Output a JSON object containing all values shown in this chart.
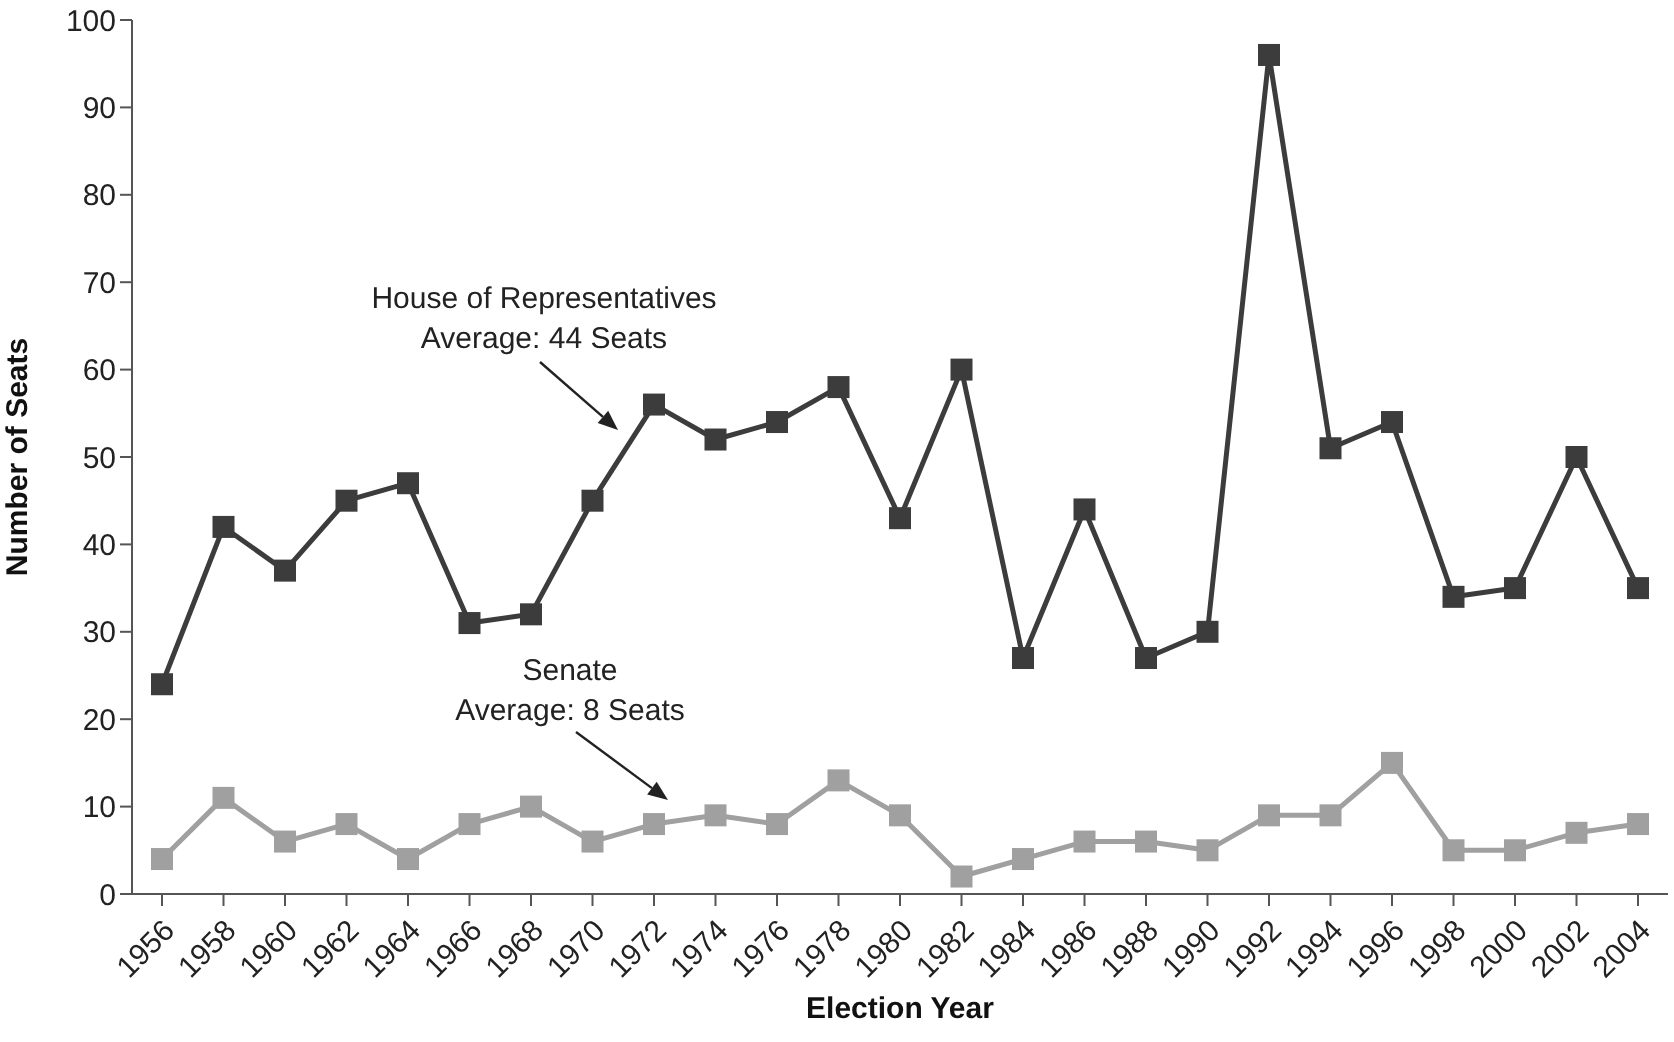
{
  "chart_data": {
    "type": "line",
    "xlabel": "Election Year",
    "ylabel": "Number of Seats",
    "categories": [
      "1956",
      "1958",
      "1960",
      "1962",
      "1964",
      "1966",
      "1968",
      "1970",
      "1972",
      "1974",
      "1976",
      "1978",
      "1980",
      "1982",
      "1984",
      "1986",
      "1988",
      "1990",
      "1992",
      "1994",
      "1996",
      "1998",
      "2000",
      "2002",
      "2004"
    ],
    "series": [
      {
        "color": "#3c3c3c",
        "values": [
          24,
          42,
          37,
          45,
          47,
          31,
          32,
          45,
          56,
          52,
          54,
          58,
          43,
          60,
          27,
          44,
          27,
          30,
          96,
          51,
          54,
          34,
          35,
          50,
          35
        ]
      },
      {
        "color": "#a0a0a0",
        "values": [
          4,
          11,
          6,
          8,
          4,
          8,
          10,
          6,
          8,
          9,
          8,
          13,
          9,
          2,
          4,
          6,
          6,
          5,
          9,
          9,
          15,
          5,
          5,
          7,
          8
        ]
      }
    ],
    "annotations": [
      "House of Representatives\nAverage: 44 Seats",
      "Senate\nAverage: 8 Seats"
    ],
    "ylim": [
      0,
      100
    ],
    "yticks": [
      0,
      10,
      20,
      30,
      40,
      50,
      60,
      70,
      80,
      90,
      100
    ],
    "grid": false,
    "legend": false,
    "marker": "square",
    "line_style": "solid"
  }
}
